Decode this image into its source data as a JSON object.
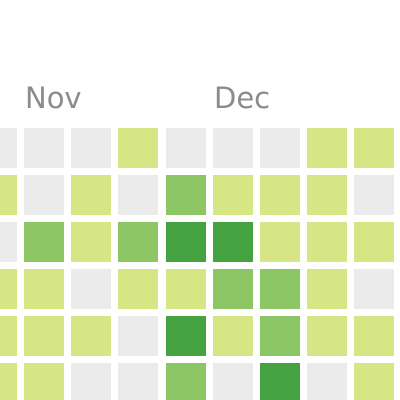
{
  "months": [
    "Nov",
    "Dec"
  ],
  "legend_colors": {
    "0": "#ebebeb",
    "1": "#d6e685",
    "2": "#8cc665",
    "3": "#44a340"
  },
  "contribution_levels": [
    [
      0,
      0,
      0,
      1,
      0,
      0,
      0,
      1,
      1
    ],
    [
      1,
      0,
      1,
      0,
      2,
      1,
      1,
      1,
      0
    ],
    [
      0,
      2,
      1,
      2,
      3,
      3,
      1,
      1,
      1
    ],
    [
      1,
      1,
      0,
      1,
      1,
      2,
      2,
      1,
      0
    ],
    [
      1,
      1,
      1,
      0,
      3,
      1,
      2,
      1,
      1
    ],
    [
      1,
      1,
      0,
      0,
      2,
      0,
      3,
      0,
      1
    ]
  ]
}
